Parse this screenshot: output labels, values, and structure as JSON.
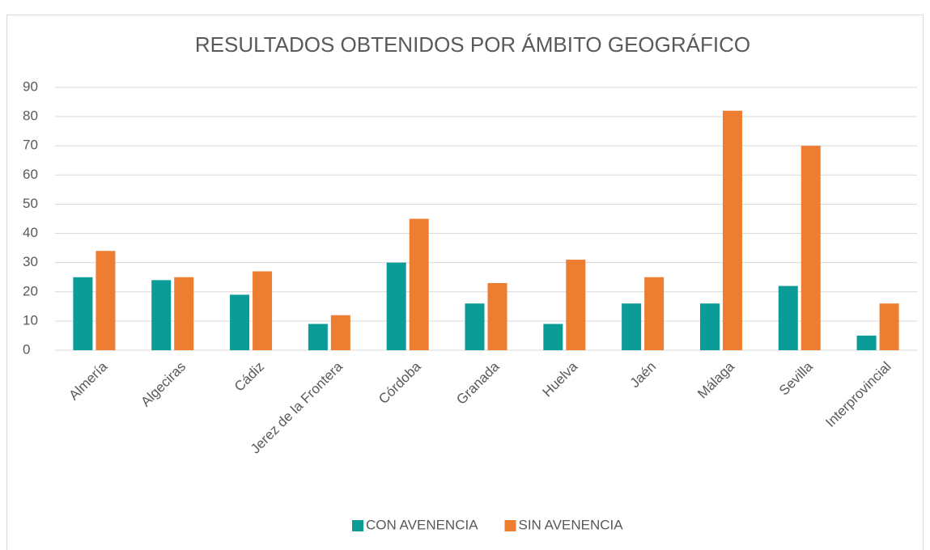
{
  "chart_data": {
    "type": "bar",
    "title": "RESULTADOS OBTENIDOS POR ÁMBITO GEOGRÁFICO",
    "categories": [
      "Almería",
      "Algeciras",
      "Cádiz",
      "Jerez de la Frontera",
      "Córdoba",
      "Granada",
      "Huelva",
      "Jaén",
      "Málaga",
      "Sevilla",
      "Interprovincial"
    ],
    "series": [
      {
        "name": "CON AVENENCIA",
        "color": "#0c9c98",
        "values": [
          25,
          24,
          19,
          9,
          30,
          16,
          9,
          16,
          16,
          22,
          5
        ]
      },
      {
        "name": "SIN AVENENCIA",
        "color": "#ed7d31",
        "values": [
          34,
          25,
          27,
          12,
          45,
          23,
          31,
          25,
          82,
          70,
          16
        ]
      }
    ],
    "ylim": [
      0,
      90
    ],
    "yticks": [
      0,
      10,
      20,
      30,
      40,
      50,
      60,
      70,
      80,
      90
    ],
    "grid": true,
    "legend": "bottom"
  }
}
